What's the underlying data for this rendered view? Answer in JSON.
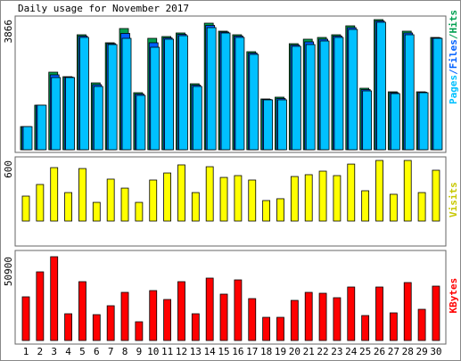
{
  "chart_data": [
    {
      "type": "bar",
      "title": "Daily usage for November 2017",
      "ylim": [
        0,
        3866
      ],
      "yticks": [
        3866
      ],
      "legend_separator": "/",
      "series": [
        {
          "name": "Pages",
          "color": "#00c0ff",
          "values": [
            688,
            1324,
            2145,
            2145,
            3337,
            1880,
            3125,
            3310,
            1615,
            3045,
            3284,
            3389,
            1880,
            3628,
            3469,
            3337,
            2833,
            1483,
            1483,
            3072,
            3125,
            3231,
            3337,
            3575,
            1748,
            3787,
            1668,
            3416,
            1695,
            3310
          ]
        },
        {
          "name": "Files",
          "color": "#0060ff",
          "values": [
            688,
            1324,
            2225,
            2158,
            3377,
            1933,
            3152,
            3456,
            1655,
            3178,
            3324,
            3429,
            1920,
            3694,
            3496,
            3377,
            2873,
            1496,
            1523,
            3112,
            3205,
            3284,
            3377,
            3628,
            1788,
            3827,
            1695,
            3469,
            1708,
            3323
          ]
        },
        {
          "name": "Hits",
          "color": "#00a050",
          "values": [
            688,
            1324,
            2304,
            2171,
            3416,
            1986,
            3178,
            3601,
            1695,
            3310,
            3363,
            3469,
            1960,
            3760,
            3522,
            3416,
            2913,
            1509,
            1562,
            3151,
            3284,
            3336,
            3416,
            3681,
            1827,
            3866,
            1721,
            3522,
            1721,
            3336
          ]
        }
      ]
    },
    {
      "type": "bar",
      "ylim": [
        0,
        600
      ],
      "yticks": [
        600
      ],
      "series": [
        {
          "name": "Visits",
          "color": "#ffff00",
          "label_color": "#c8c800",
          "values": [
            247,
            362,
            529,
            282,
            520,
            185,
            415,
            326,
            185,
            406,
            476,
            556,
            282,
            538,
            432,
            450,
            406,
            203,
            221,
            441,
            459,
            494,
            450,
            564,
            300,
            600,
            265,
            600,
            282,
            503
          ]
        }
      ]
    },
    {
      "type": "bar",
      "ylim": [
        0,
        50900
      ],
      "yticks": [
        50900
      ],
      "categories": [
        "1",
        "2",
        "3",
        "4",
        "5",
        "6",
        "7",
        "8",
        "9",
        "10",
        "11",
        "12",
        "13",
        "14",
        "15",
        "16",
        "17",
        "18",
        "19",
        "20",
        "21",
        "22",
        "23",
        "24",
        "25",
        "26",
        "27",
        "28",
        "29",
        "30"
      ],
      "category_colors": [
        "#000",
        "#000",
        "#000",
        "#00a000",
        "#00a000",
        "#000",
        "#000",
        "#000",
        "#000",
        "#000",
        "#00a000",
        "#00a000",
        "#000",
        "#000",
        "#000",
        "#000",
        "#000",
        "#00a000",
        "#00a000",
        "#000",
        "#000",
        "#000",
        "#000",
        "#000",
        "#00a000",
        "#00a000",
        "#000",
        "#000",
        "#000",
        "#000"
      ],
      "series": [
        {
          "name": "KBytes",
          "color": "#ff0000",
          "values": [
            26533,
            41696,
            50900,
            16245,
            35739,
            15703,
            21118,
            29240,
            11372,
            30323,
            24909,
            35739,
            16245,
            37905,
            28158,
            36822,
            25450,
            14079,
            14079,
            24367,
            29240,
            28699,
            25991,
            32489,
            15162,
            32489,
            16786,
            35197,
            18952,
            33030
          ]
        }
      ]
    }
  ]
}
